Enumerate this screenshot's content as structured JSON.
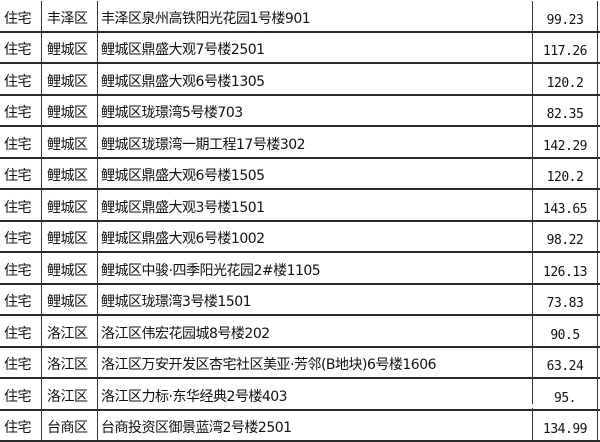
{
  "rows": [
    {
      "type": "住宅",
      "district": "丰泽区",
      "address": "丰泽区泉州高铁阳光花园1号楼901",
      "area": "99.23"
    },
    {
      "type": "住宅",
      "district": "鲤城区",
      "address": "鲤城区鼎盛大观7号楼2501",
      "area": "117.26"
    },
    {
      "type": "住宅",
      "district": "鲤城区",
      "address": "鲤城区鼎盛大观6号楼1305",
      "area": "120.2"
    },
    {
      "type": "住宅",
      "district": "鲤城区",
      "address": "鲤城区珑璟湾5号楼703",
      "area": "82.35"
    },
    {
      "type": "住宅",
      "district": "鲤城区",
      "address": "鲤城区珑璟湾一期工程17号楼302",
      "area": "142.29"
    },
    {
      "type": "住宅",
      "district": "鲤城区",
      "address": "鲤城区鼎盛大观6号楼1505",
      "area": "120.2"
    },
    {
      "type": "住宅",
      "district": "鲤城区",
      "address": "鲤城区鼎盛大观3号楼1501",
      "area": "143.65"
    },
    {
      "type": "住宅",
      "district": "鲤城区",
      "address": "鲤城区鼎盛大观6号楼1002",
      "area": "98.22"
    },
    {
      "type": "住宅",
      "district": "鲤城区",
      "address": "鲤城区中骏·四季阳光花园2#楼1105",
      "area": "126.13"
    },
    {
      "type": "住宅",
      "district": "鲤城区",
      "address": "鲤城区珑璟湾3号楼1501",
      "area": "73.83"
    },
    {
      "type": "住宅",
      "district": "洛江区",
      "address": "洛江区伟宏花园城8号楼202",
      "area": "90.5"
    },
    {
      "type": "住宅",
      "district": "洛江区",
      "address": "洛江区万安开发区杏宅社区美亚·芳邻(B地块)6号楼1606",
      "area": "63.24"
    },
    {
      "type": "住宅",
      "district": "洛江区",
      "address": "洛江区力标·东华经典2号楼403",
      "area": "95."
    },
    {
      "type": "住宅",
      "district": "台商区",
      "address": "台商投资区御景蓝湾2号楼2501",
      "area": "134.99"
    }
  ]
}
